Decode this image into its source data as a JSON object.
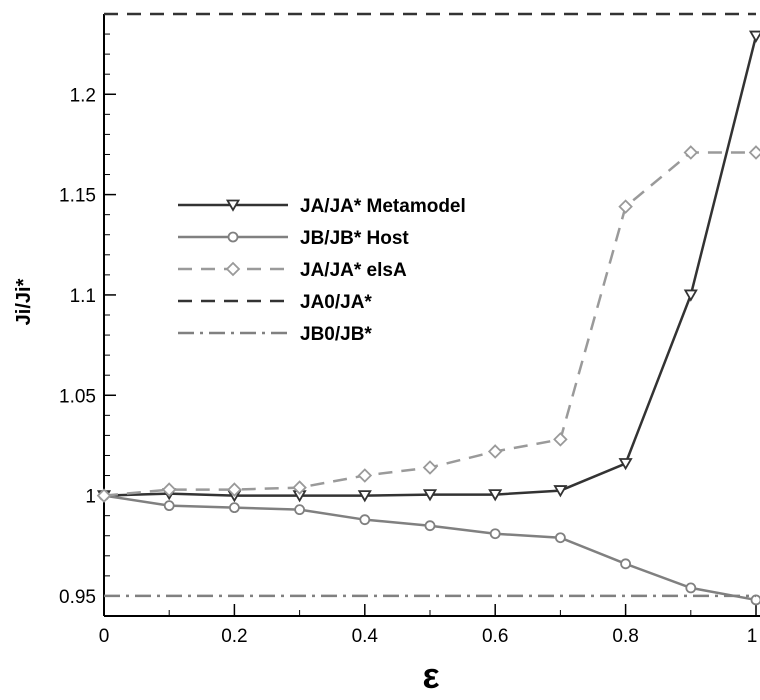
{
  "chart_data": {
    "type": "line",
    "title": "",
    "xlabel": "ε",
    "ylabel": "Ji/Ji*",
    "xlim": [
      0,
      1
    ],
    "ylim": [
      0.94,
      1.24
    ],
    "x_ticks": [
      "0",
      "0.2",
      "0.4",
      "0.6",
      "0.8",
      "1"
    ],
    "x_tick_values": [
      0,
      0.2,
      0.4,
      0.6,
      0.8,
      1
    ],
    "y_ticks": [
      "0.95",
      "1",
      "1.05",
      "1.1",
      "1.15",
      "1.2"
    ],
    "y_tick_values": [
      0.95,
      1,
      1.05,
      1.1,
      1.15,
      1.2
    ],
    "grid": false,
    "legend_position": "left",
    "series": [
      {
        "name": "JA/JA*  Metamodel",
        "color": "#333333",
        "dash": "solid",
        "marker": "triangle-down",
        "x": [
          0,
          0.1,
          0.2,
          0.3,
          0.4,
          0.5,
          0.6,
          0.7,
          0.8,
          0.9,
          1.0
        ],
        "values": [
          1.0,
          1.001,
          1.0,
          1.0,
          1.0,
          1.0005,
          1.0005,
          1.0025,
          1.016,
          1.1,
          1.229
        ]
      },
      {
        "name": "JB/JB* Host",
        "color": "#808080",
        "dash": "solid",
        "marker": "circle",
        "x": [
          0,
          0.1,
          0.2,
          0.3,
          0.4,
          0.5,
          0.6,
          0.7,
          0.8,
          0.9,
          1.0
        ],
        "values": [
          1.0,
          0.995,
          0.994,
          0.993,
          0.988,
          0.985,
          0.981,
          0.979,
          0.966,
          0.954,
          0.948
        ]
      },
      {
        "name": "JA/JA*  elsA",
        "color": "#9a9a9a",
        "dash": "dashed",
        "marker": "diamond",
        "x": [
          0,
          0.1,
          0.2,
          0.3,
          0.4,
          0.5,
          0.6,
          0.7,
          0.8,
          0.9,
          1.0
        ],
        "values": [
          1.0,
          1.003,
          1.003,
          1.004,
          1.01,
          1.014,
          1.022,
          1.028,
          1.144,
          1.171,
          1.171
        ]
      },
      {
        "name": "JA0/JA*",
        "color": "#333333",
        "dash": "dashed",
        "marker": "none",
        "x": [
          0,
          1
        ],
        "values": [
          1.24,
          1.24
        ]
      },
      {
        "name": "JB0/JB*",
        "color": "#808080",
        "dash": "dashdot",
        "marker": "none",
        "x": [
          0,
          1
        ],
        "values": [
          0.95,
          0.95
        ]
      }
    ]
  }
}
